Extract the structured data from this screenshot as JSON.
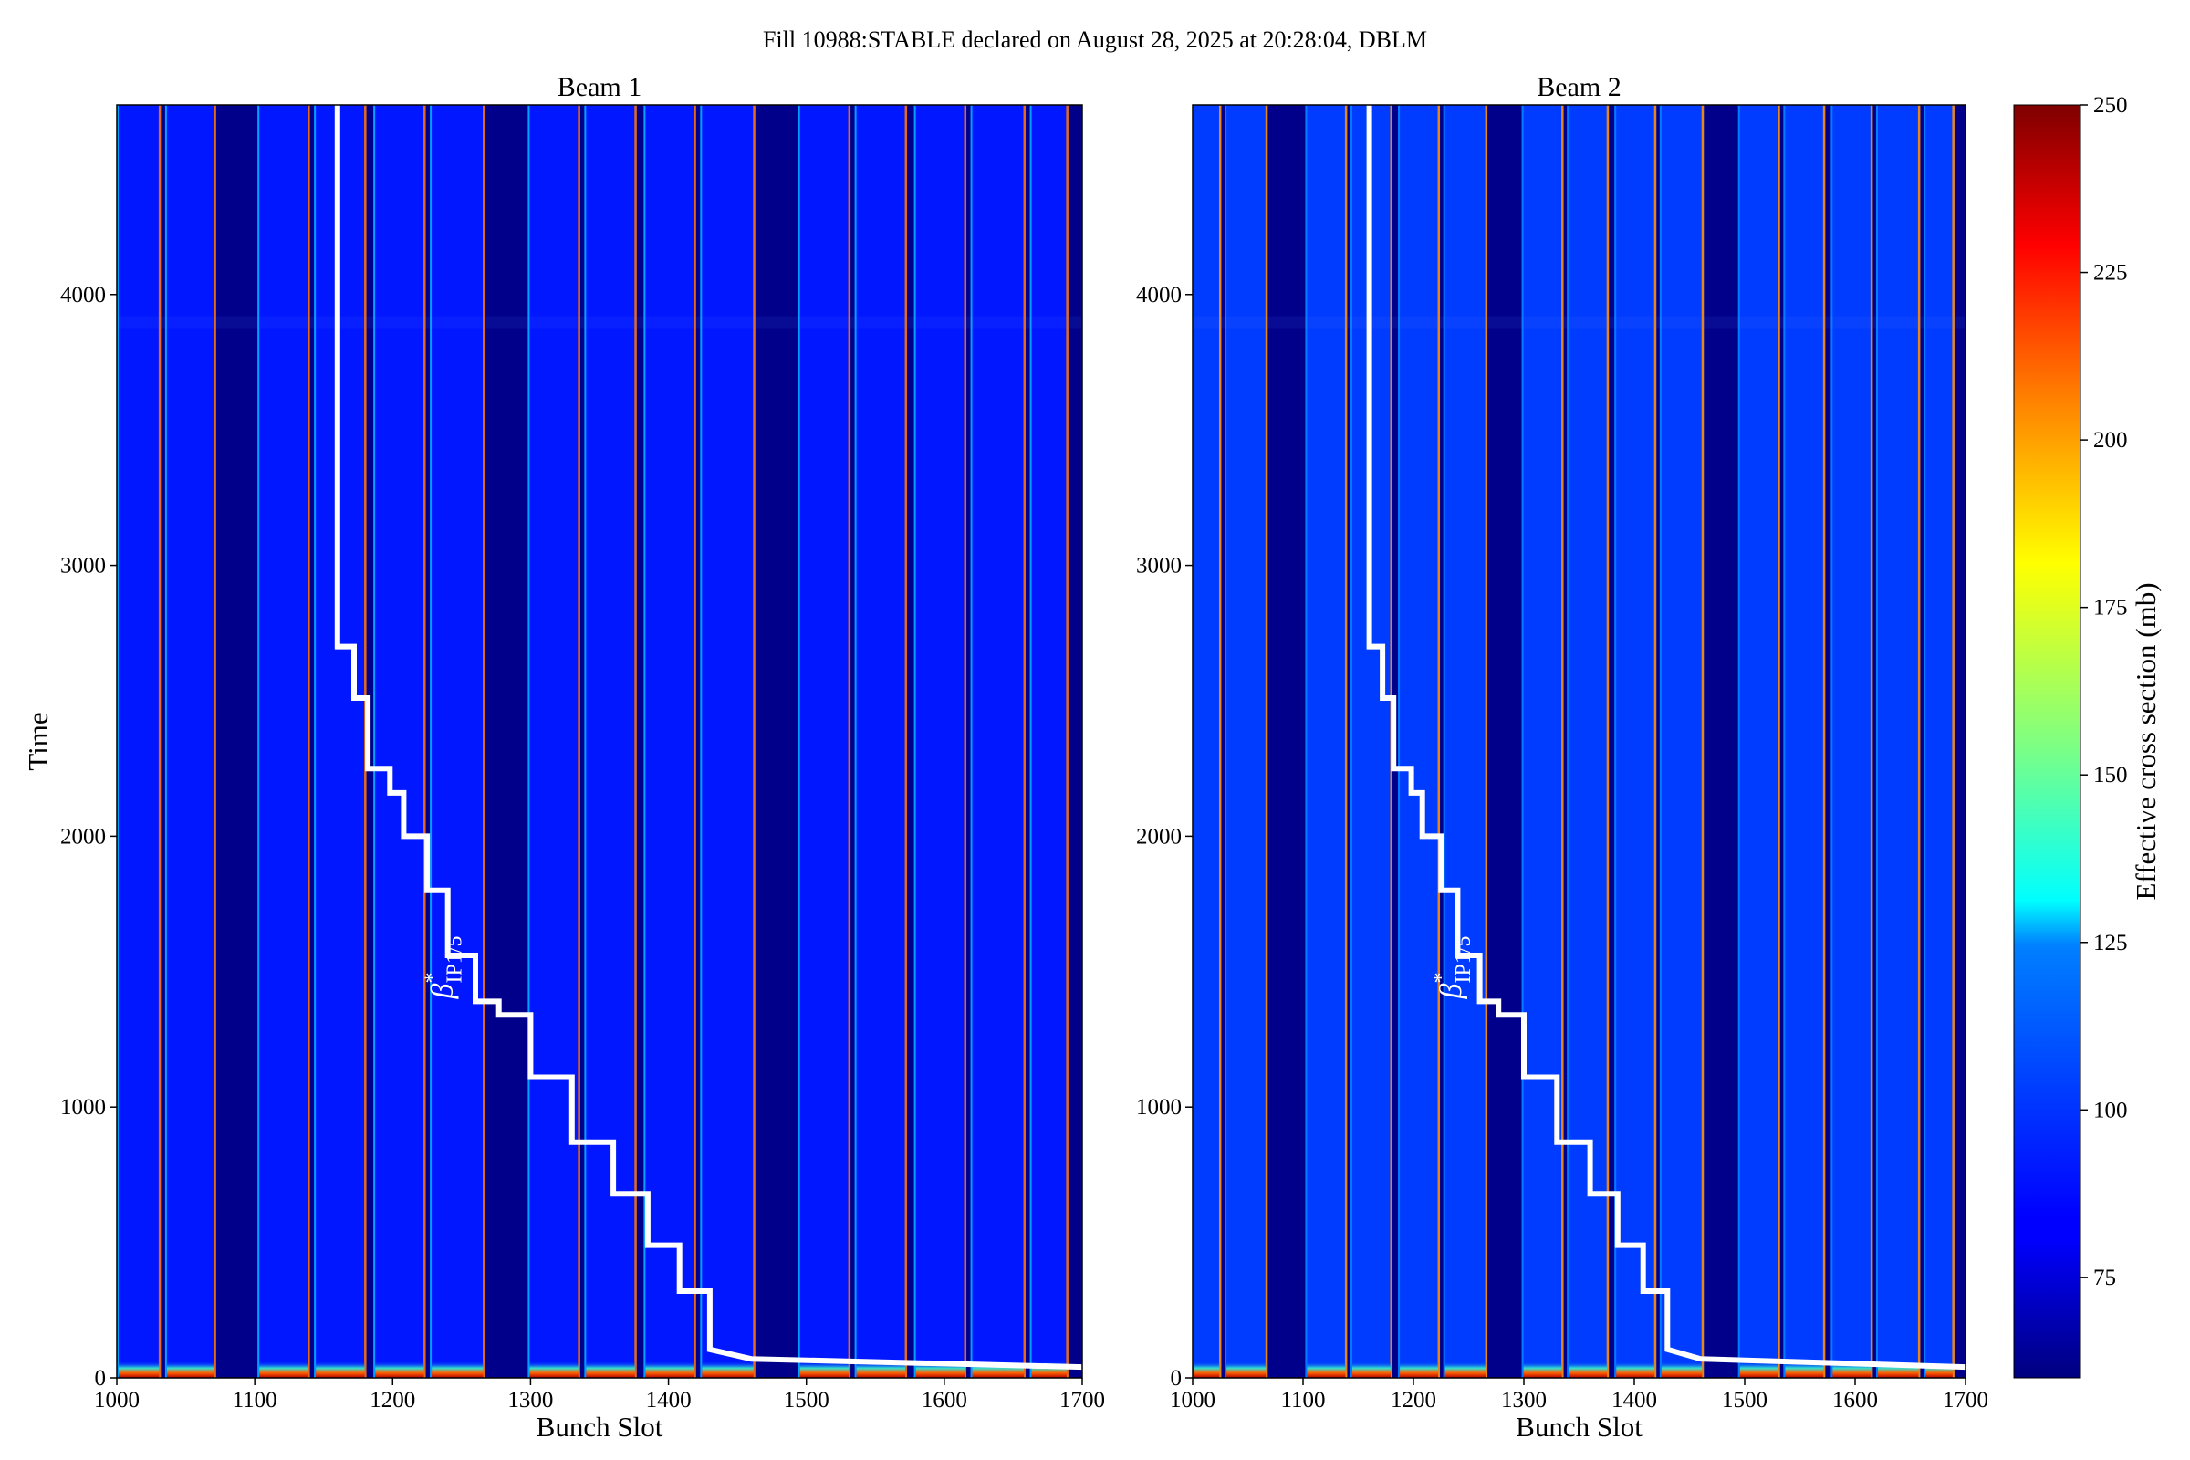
{
  "chart_data": {
    "type": "heatmap",
    "title": "Fill 10988:STABLE declared on August 28, 2025 at 20:28:04, DBLM",
    "colorbar": {
      "label": "Effective cross section (mb)",
      "range": [
        60,
        250
      ],
      "ticks": [
        75,
        100,
        125,
        150,
        175,
        200,
        225,
        250
      ],
      "colormap": "jet"
    },
    "xlim": [
      1000,
      1700
    ],
    "ylim": [
      0,
      4700
    ],
    "xticks": [
      1000,
      1100,
      1200,
      1300,
      1400,
      1500,
      1600,
      1700
    ],
    "yticks": [
      0,
      1000,
      2000,
      3000,
      4000
    ],
    "xlabel": "Bunch Slot",
    "ylabel": "Time",
    "annotation": {
      "symbol": "β",
      "sup": "*",
      "sub": "IP1/5"
    },
    "panels": [
      {
        "title": "Beam 1",
        "bunch_trains": [
          [
            1000,
            1032
          ],
          [
            1035,
            1072
          ],
          [
            1102,
            1140
          ],
          [
            1143,
            1181
          ],
          [
            1186,
            1224
          ],
          [
            1227,
            1267
          ],
          [
            1298,
            1336
          ],
          [
            1339,
            1377
          ],
          [
            1382,
            1420
          ],
          [
            1423,
            1463
          ],
          [
            1494,
            1532
          ],
          [
            1535,
            1573
          ],
          [
            1578,
            1616
          ],
          [
            1619,
            1659
          ],
          [
            1662,
            1690
          ]
        ],
        "background_level": 88
      },
      {
        "title": "Beam 2",
        "bunch_trains": [
          [
            1000,
            1026
          ],
          [
            1029,
            1068
          ],
          [
            1102,
            1140
          ],
          [
            1143,
            1181
          ],
          [
            1186,
            1224
          ],
          [
            1227,
            1267
          ],
          [
            1298,
            1336
          ],
          [
            1339,
            1377
          ],
          [
            1382,
            1420
          ],
          [
            1423,
            1463
          ],
          [
            1494,
            1532
          ],
          [
            1535,
            1573
          ],
          [
            1578,
            1616
          ],
          [
            1619,
            1659
          ],
          [
            1662,
            1690
          ]
        ],
        "background_level": 95
      }
    ],
    "beta_star_step_line": {
      "x": [
        1160,
        1160,
        1172,
        1172,
        1182,
        1182,
        1198,
        1198,
        1208,
        1208,
        1225,
        1225,
        1240,
        1240,
        1260,
        1260,
        1277,
        1277,
        1300,
        1300,
        1330,
        1330,
        1360,
        1360,
        1385,
        1385,
        1408,
        1408,
        1430,
        1430,
        1460,
        1700
      ],
      "y": [
        4700,
        2700,
        2700,
        2510,
        2510,
        2250,
        2250,
        2160,
        2160,
        2000,
        2000,
        1800,
        1800,
        1560,
        1560,
        1390,
        1390,
        1340,
        1340,
        1110,
        1110,
        870,
        870,
        680,
        680,
        490,
        490,
        320,
        320,
        105,
        70,
        40
      ]
    }
  }
}
